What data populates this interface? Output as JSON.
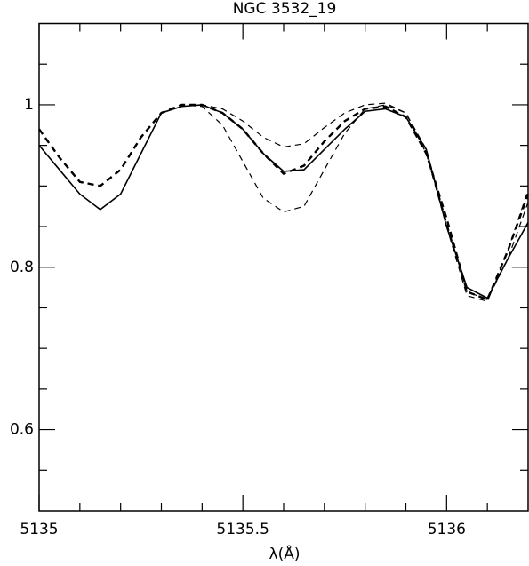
{
  "chart_data": {
    "type": "line",
    "title": "NGC 3532_19",
    "x_label": "λ(Å)",
    "x": [
      5135.0,
      5135.05,
      5135.1,
      5135.15,
      5135.2,
      5135.25,
      5135.3,
      5135.35,
      5135.4,
      5135.45,
      5135.5,
      5135.55,
      5135.6,
      5135.65,
      5135.7,
      5135.75,
      5135.8,
      5135.85,
      5135.9,
      5135.95,
      5136.0,
      5136.05,
      5136.1,
      5136.15,
      5136.2
    ],
    "series": [
      {
        "color": "#000000",
        "dash": "none",
        "width": 1.6,
        "values": [
          0.95,
          0.92,
          0.89,
          0.871,
          0.89,
          0.94,
          0.99,
          0.998,
          1.0,
          0.99,
          0.97,
          0.94,
          0.918,
          0.92,
          0.945,
          0.97,
          0.992,
          0.995,
          0.985,
          0.945,
          0.85,
          0.775,
          0.762,
          0.81,
          0.855
        ]
      },
      {
        "color": "#000000",
        "dash": "7 5",
        "width": 2.4,
        "values": [
          0.97,
          0.935,
          0.905,
          0.9,
          0.92,
          0.96,
          0.99,
          1.0,
          1.0,
          0.99,
          0.97,
          0.94,
          0.915,
          0.925,
          0.955,
          0.98,
          0.995,
          0.998,
          0.985,
          0.94,
          0.86,
          0.77,
          0.76,
          0.82,
          0.89
        ]
      },
      {
        "color": "#000000",
        "dash": "7 5",
        "width": 1.2,
        "values": [
          0.97,
          0.935,
          0.905,
          0.9,
          0.92,
          0.96,
          0.99,
          1.0,
          1.0,
          0.995,
          0.98,
          0.96,
          0.948,
          0.952,
          0.972,
          0.99,
          1.0,
          1.002,
          0.99,
          0.94,
          0.85,
          0.765,
          0.758,
          0.82,
          0.895
        ]
      },
      {
        "color": "#000000",
        "dash": "7 5",
        "width": 1.2,
        "values": [
          0.97,
          0.935,
          0.905,
          0.9,
          0.92,
          0.96,
          0.99,
          1.0,
          0.998,
          0.975,
          0.93,
          0.885,
          0.868,
          0.875,
          0.92,
          0.965,
          0.995,
          1.0,
          0.99,
          0.945,
          0.855,
          0.77,
          0.76,
          0.81,
          0.88
        ]
      }
    ],
    "xlim": [
      5135,
      5136.2
    ],
    "xticks": [
      5135,
      5135.5,
      5136
    ],
    "xminorticks": [
      5135.1,
      5135.2,
      5135.3,
      5135.4,
      5135.6,
      5135.7,
      5135.8,
      5135.9,
      5136.1
    ],
    "ylim": [
      0.5,
      1.1
    ],
    "yticks": [
      0.6,
      0.8,
      1
    ],
    "yminorticks": [
      0.55,
      0.65,
      0.7,
      0.75,
      0.85,
      0.9,
      0.95,
      1.05
    ]
  }
}
